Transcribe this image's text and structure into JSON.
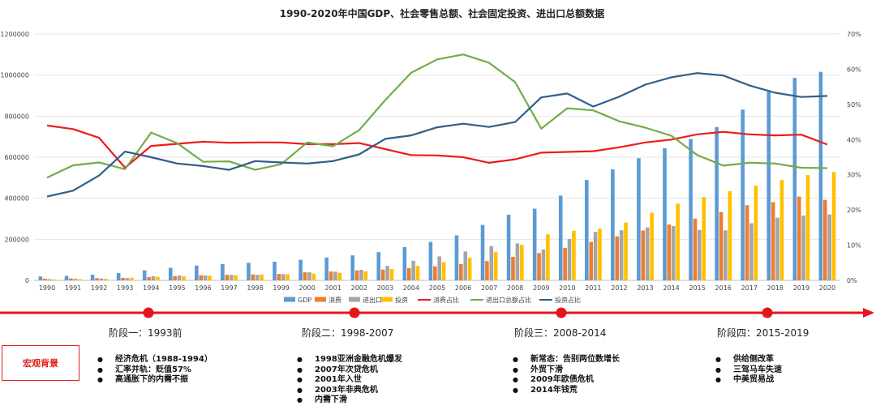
{
  "chart_data": {
    "type": "bar",
    "title": "1990-2020年中国GDP、社会零售总额、社会固定投资、进出口总额数据",
    "categories": [
      "1990",
      "1991",
      "1992",
      "1993",
      "1994",
      "1995",
      "1996",
      "1997",
      "1998",
      "1999",
      "2000",
      "2001",
      "2002",
      "2003",
      "2004",
      "2005",
      "2006",
      "2007",
      "2008",
      "2009",
      "2010",
      "2011",
      "2012",
      "2013",
      "2014",
      "2015",
      "2016",
      "2017",
      "2018",
      "2019",
      "2020"
    ],
    "y_left": {
      "min": 0,
      "max": 1200000,
      "ticks": [
        "0",
        "200000",
        "400000",
        "600000",
        "800000",
        "1000000",
        "1200000"
      ]
    },
    "y_right": {
      "min": 0,
      "max": 70,
      "ticks": [
        "0%",
        "10%",
        "20%",
        "30%",
        "40%",
        "50%",
        "60%",
        "70%"
      ]
    },
    "series": [
      {
        "name": "GDP",
        "kind": "bar",
        "color": "#5b9bd5",
        "values": [
          18900,
          22000,
          27200,
          35700,
          48600,
          61300,
          71800,
          79700,
          85200,
          90600,
          100300,
          111000,
          121700,
          137400,
          161800,
          187300,
          219400,
          270100,
          319500,
          349100,
          413000,
          489300,
          540400,
          595200,
          643600,
          688900,
          746400,
          832000,
          919300,
          986500,
          1015900
        ]
      },
      {
        "name": "消费",
        "kind": "bar",
        "color": "#ed7d31",
        "values": [
          8300,
          9400,
          10900,
          12200,
          16100,
          20600,
          24800,
          27300,
          29200,
          31100,
          39100,
          43100,
          48100,
          52500,
          59500,
          68400,
          79100,
          93600,
          114800,
          133000,
          158000,
          187200,
          214400,
          242800,
          271900,
          300900,
          332300,
          366300,
          380900,
          408000,
          391900
        ]
      },
      {
        "name": "进出口",
        "kind": "bar",
        "color": "#a5a5a5",
        "values": [
          5600,
          7200,
          9100,
          11300,
          20400,
          23500,
          24100,
          26900,
          26800,
          29900,
          39300,
          42200,
          51400,
          70500,
          95500,
          116900,
          140900,
          166900,
          179900,
          150600,
          201700,
          236400,
          244200,
          258200,
          264200,
          245500,
          243400,
          278100,
          305100,
          315600,
          321600
        ]
      },
      {
        "name": "投资",
        "kind": "bar",
        "color": "#ffc000",
        "values": [
          4500,
          5600,
          8100,
          13000,
          17000,
          20000,
          22900,
          24900,
          28400,
          29900,
          32900,
          37200,
          43500,
          55600,
          70500,
          88800,
          110000,
          137300,
          172800,
          224600,
          241400,
          251700,
          281700,
          329300,
          373600,
          405900,
          434400,
          461300,
          488500,
          513600,
          527300
        ]
      },
      {
        "name": "消费占比",
        "kind": "line",
        "color": "#ee1c1c",
        "values": [
          44,
          43,
          40.5,
          32,
          38.2,
          38.8,
          39.4,
          39.1,
          39.2,
          39.2,
          38.7,
          38.7,
          39,
          37.3,
          35.6,
          35.5,
          35,
          33.4,
          34.4,
          36.3,
          36.5,
          36.7,
          37.8,
          39.2,
          40,
          41.5,
          42.2,
          41.5,
          41.2,
          41.4,
          38.6
        ]
      },
      {
        "name": "进出口总额占比",
        "kind": "line",
        "color": "#70ad47",
        "values": [
          29.2,
          32.7,
          33.5,
          31.6,
          42,
          39,
          33.7,
          33.8,
          31.4,
          33,
          39.2,
          38.1,
          42.7,
          51.2,
          59,
          62.8,
          64.2,
          61.8,
          56.3,
          43.1,
          48.9,
          48.3,
          45.2,
          43.4,
          41.1,
          35.6,
          32.6,
          33.4,
          33.2,
          32,
          31.9
        ]
      },
      {
        "name": "投资占比",
        "kind": "line",
        "color": "#2e5f8a",
        "values": [
          23.8,
          25.5,
          29.8,
          36.6,
          35,
          33.2,
          32.5,
          31.4,
          33.9,
          33.5,
          33.2,
          33.9,
          35.8,
          40.2,
          41.2,
          43.5,
          44.5,
          43.6,
          45,
          52,
          53.1,
          49.4,
          52.2,
          55.6,
          57.7,
          58.9,
          58.2,
          55.4,
          53.3,
          52.1,
          52.4
        ]
      }
    ]
  },
  "phases": [
    {
      "label": "阶段一：1993前",
      "items": [
        "经济危机（1988-1994）",
        "汇率并轨：贬值57%",
        "高通胀下的内需不振"
      ]
    },
    {
      "label": "阶段二：1998-2007",
      "items": [
        "1998亚洲金融危机爆发",
        "2007年次贷危机",
        "2001年入世",
        "2003年非典危机",
        "内需下滑"
      ]
    },
    {
      "label": "阶段三：2008-2014",
      "items": [
        "新常态：告别两位数增长",
        "外贸下滑",
        "2009年欧债危机",
        "2014年钱荒"
      ]
    },
    {
      "label": "阶段四：2015-2019",
      "items": [
        "供给侧改革",
        "三驾马车失速",
        "中美贸易战"
      ]
    }
  ],
  "macro_label": "宏观背景",
  "colors": {
    "timeline": "#e8141b"
  }
}
